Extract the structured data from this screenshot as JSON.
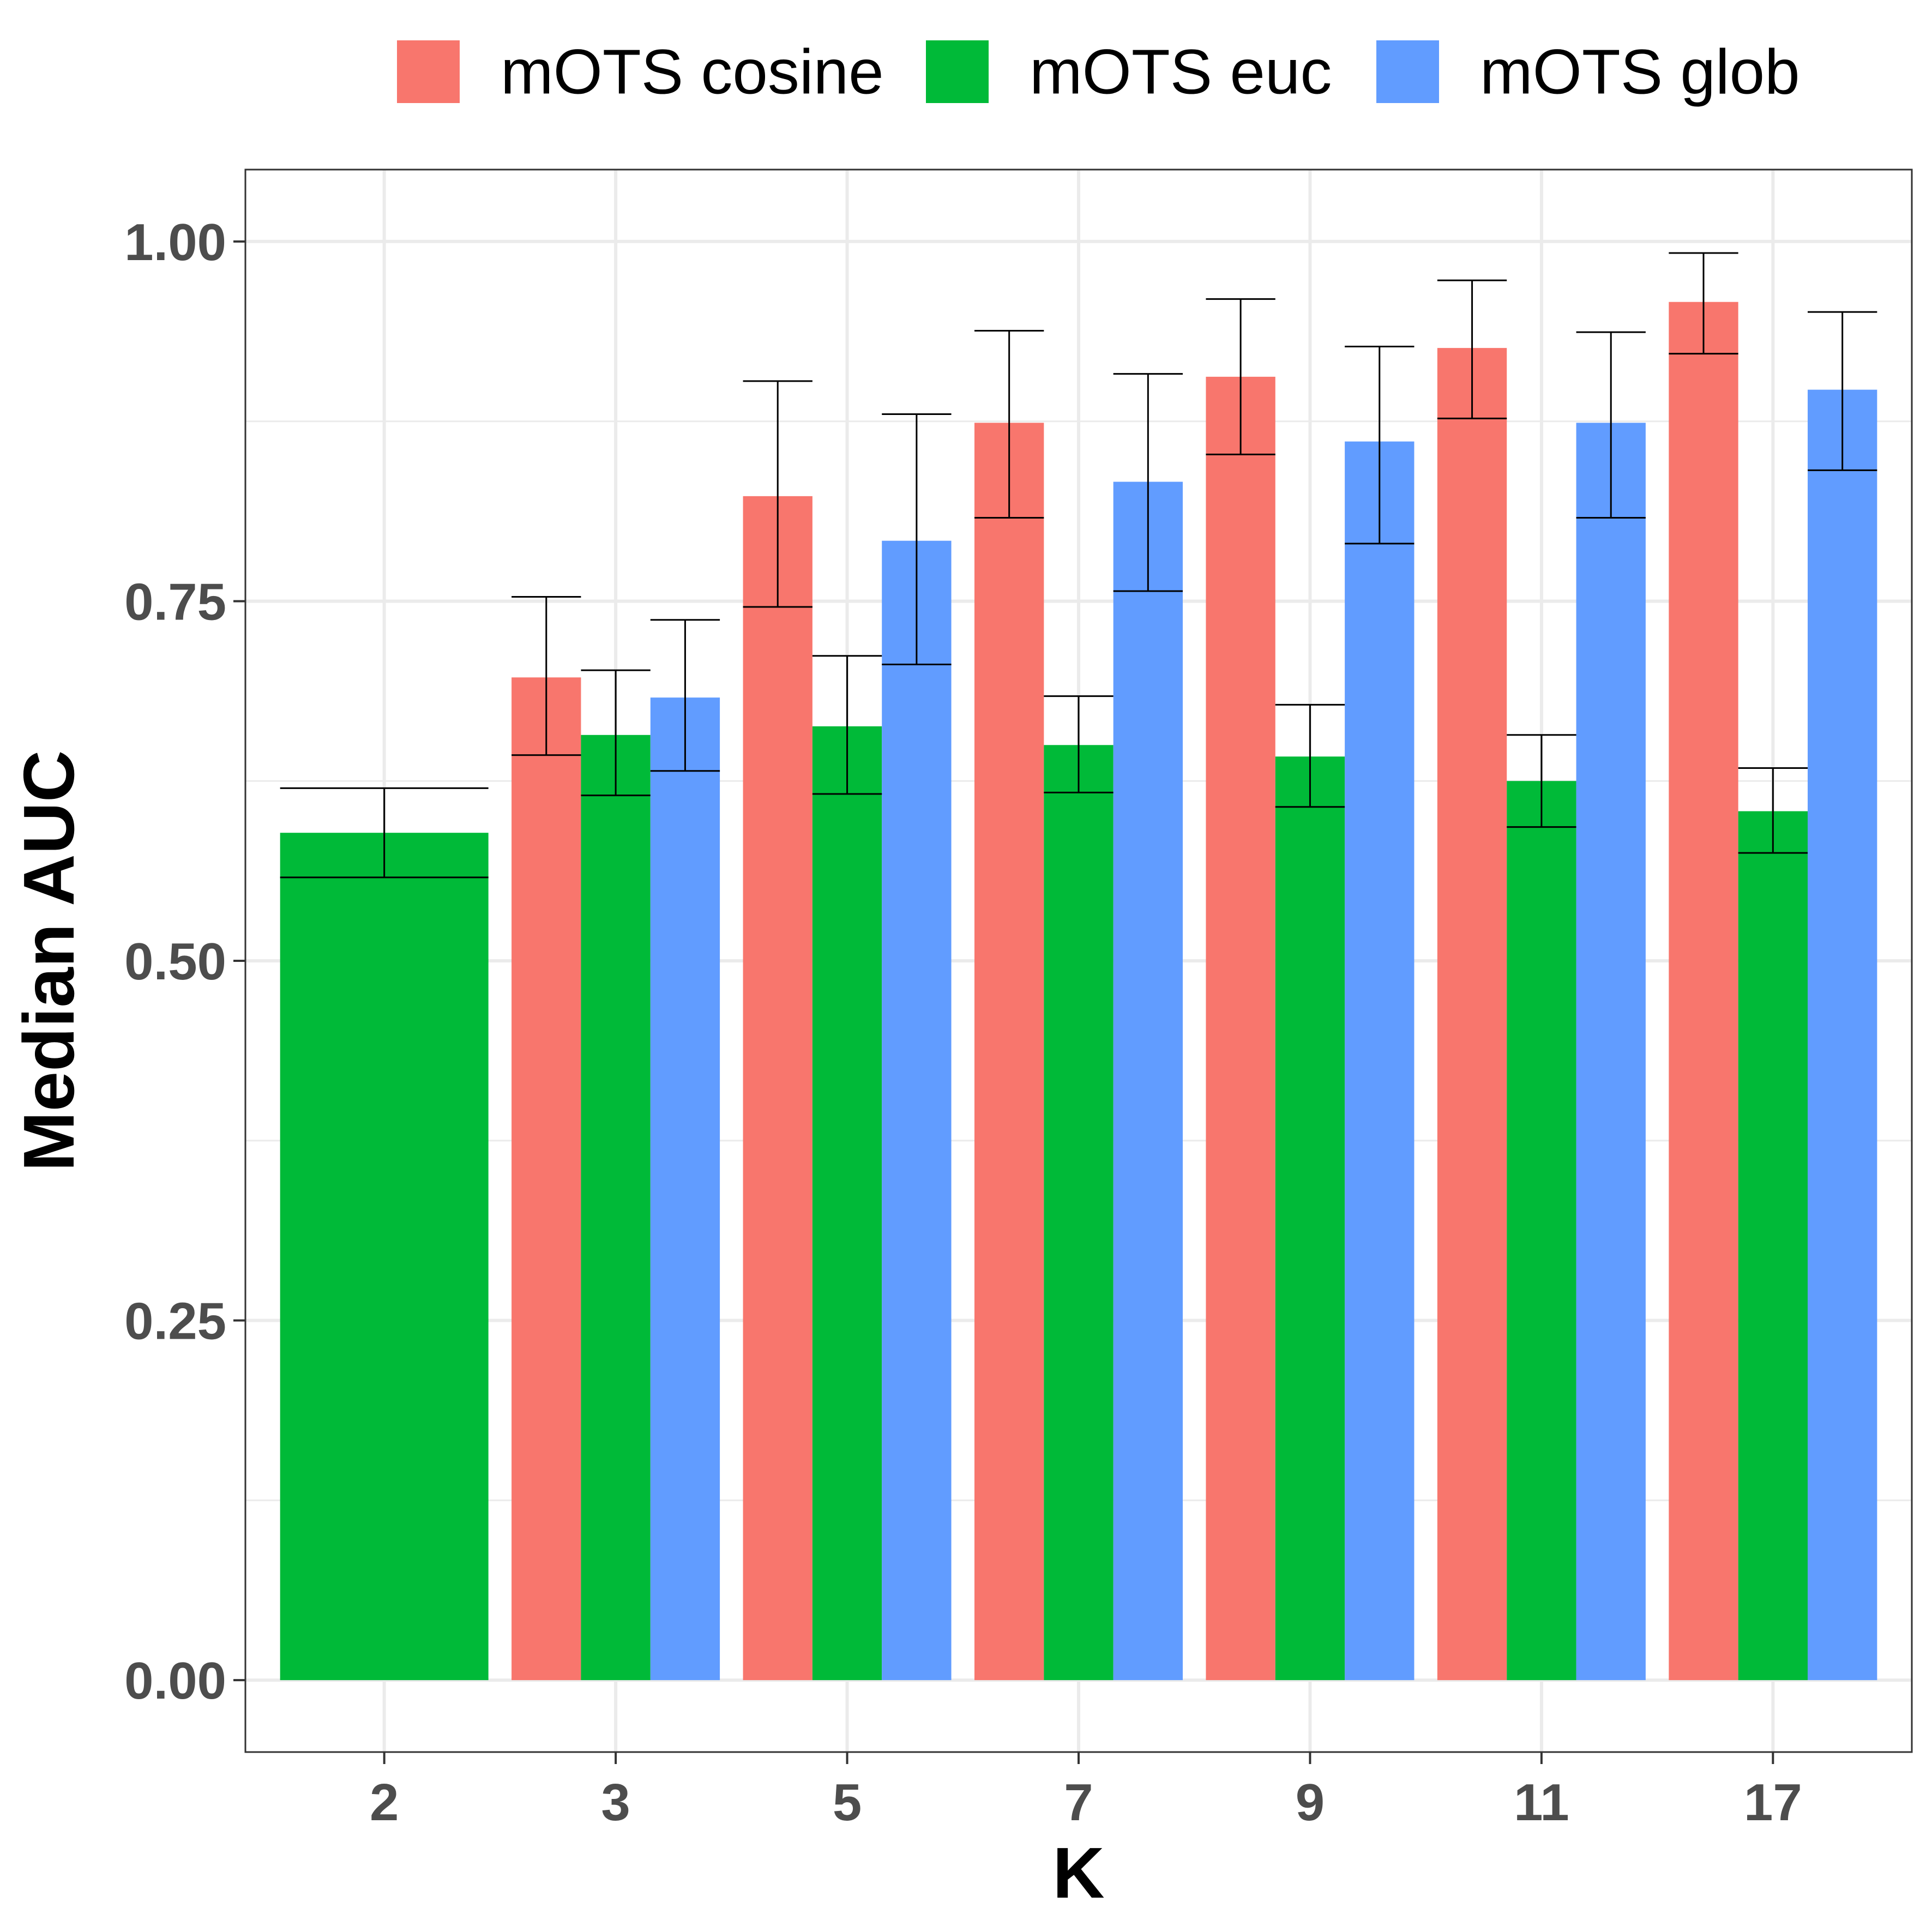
{
  "chart_data": {
    "type": "bar",
    "title": "",
    "xlabel": "K",
    "ylabel": "Median AUC",
    "categories": [
      "2",
      "3",
      "5",
      "7",
      "9",
      "11",
      "17"
    ],
    "ylim": [
      -0.05,
      1.05
    ],
    "yticks": [
      0,
      0.25,
      0.5,
      0.75,
      1
    ],
    "ytick_labels": [
      "0.00",
      "0.25",
      "0.50",
      "0.75",
      "1.00"
    ],
    "grid": true,
    "legend_position": "top",
    "series": [
      {
        "name": "mOTS cosine",
        "color": "#F8766D",
        "values": [
          null,
          0.697,
          0.823,
          0.874,
          0.906,
          0.926,
          0.958
        ],
        "err_low": [
          null,
          0.643,
          0.746,
          0.808,
          0.852,
          0.877,
          0.922
        ],
        "err_high": [
          null,
          0.753,
          0.903,
          0.938,
          0.96,
          0.973,
          0.992
        ]
      },
      {
        "name": "mOTS euc",
        "color": "#00BA38",
        "values": [
          0.589,
          0.657,
          0.663,
          0.65,
          0.642,
          0.625,
          0.604
        ],
        "err_low": [
          0.558,
          0.615,
          0.616,
          0.617,
          0.607,
          0.593,
          0.575
        ],
        "err_high": [
          0.62,
          0.702,
          0.712,
          0.684,
          0.678,
          0.657,
          0.634
        ]
      },
      {
        "name": "mOTS glob",
        "color": "#619CFF",
        "values": [
          null,
          0.683,
          0.792,
          0.833,
          0.861,
          0.874,
          0.897
        ],
        "err_low": [
          null,
          0.632,
          0.706,
          0.757,
          0.79,
          0.808,
          0.841
        ],
        "err_high": [
          null,
          0.737,
          0.88,
          0.908,
          0.927,
          0.937,
          0.951
        ]
      }
    ]
  }
}
